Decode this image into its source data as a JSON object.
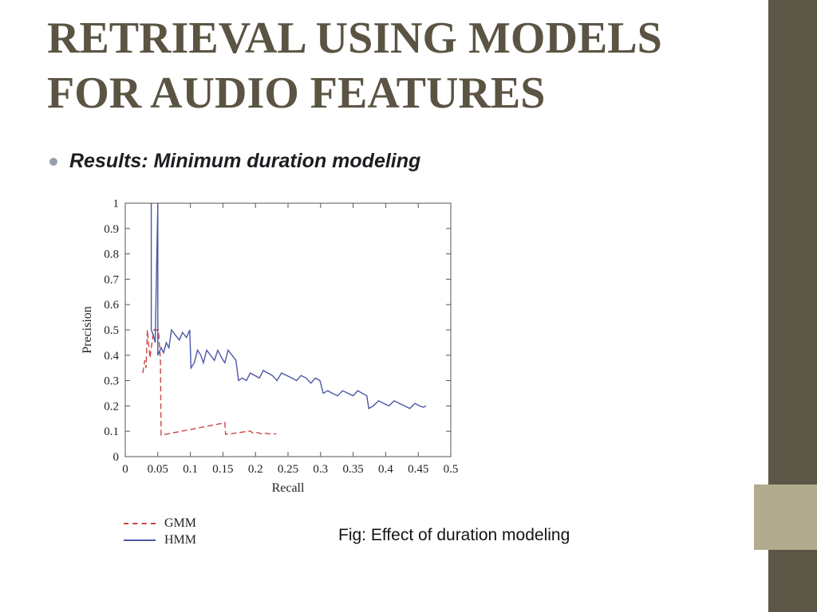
{
  "slide": {
    "title_line1": "RETRIEVAL USING MODELS",
    "title_line2": "FOR AUDIO FEATURES",
    "bullet_text": "Results: Minimum duration modeling",
    "caption": "Fig: Effect of duration modeling"
  },
  "colors": {
    "title_text": "#5b5443",
    "right_bar": "#5b5646",
    "accent_block": "#b2ab8d",
    "gmm_line": "#cc4444",
    "hmm_line": "#4c57a5",
    "axis": "#555555"
  },
  "chart_data": {
    "type": "line",
    "title": "",
    "xlabel": "Recall",
    "ylabel": "Precision",
    "xlim": [
      0,
      0.5
    ],
    "ylim": [
      0,
      1
    ],
    "grid": false,
    "xticks": [
      "0",
      "0.05",
      "0.1",
      "0.15",
      "0.2",
      "0.25",
      "0.3",
      "0.35",
      "0.4",
      "0.45",
      "0.5"
    ],
    "yticks": [
      "0",
      "0.1",
      "0.2",
      "0.3",
      "0.4",
      "0.5",
      "0.6",
      "0.7",
      "0.8",
      "0.9",
      "1"
    ],
    "legend_position": "below-left",
    "legend": [
      {
        "label": "GMM",
        "style": "dashed",
        "color": "#cc4444"
      },
      {
        "label": "HMM",
        "style": "solid",
        "color": "#4c57a5"
      }
    ],
    "series": [
      {
        "name": "GMM",
        "style": "dashed",
        "color": "#cc4444",
        "points": [
          [
            0.027,
            0.33
          ],
          [
            0.03,
            0.38
          ],
          [
            0.032,
            0.35
          ],
          [
            0.034,
            0.5
          ],
          [
            0.036,
            0.44
          ],
          [
            0.038,
            0.39
          ],
          [
            0.041,
            0.45
          ],
          [
            0.044,
            0.5
          ],
          [
            0.051,
            0.5
          ],
          [
            0.053,
            0.42
          ],
          [
            0.054,
            0.38
          ],
          [
            0.055,
            0.085
          ],
          [
            0.062,
            0.088
          ],
          [
            0.07,
            0.092
          ],
          [
            0.078,
            0.096
          ],
          [
            0.086,
            0.1
          ],
          [
            0.094,
            0.104
          ],
          [
            0.102,
            0.108
          ],
          [
            0.11,
            0.112
          ],
          [
            0.118,
            0.116
          ],
          [
            0.126,
            0.12
          ],
          [
            0.134,
            0.124
          ],
          [
            0.142,
            0.128
          ],
          [
            0.15,
            0.132
          ],
          [
            0.153,
            0.135
          ],
          [
            0.154,
            0.088
          ],
          [
            0.162,
            0.09
          ],
          [
            0.17,
            0.093
          ],
          [
            0.178,
            0.096
          ],
          [
            0.186,
            0.099
          ],
          [
            0.192,
            0.101
          ],
          [
            0.196,
            0.093
          ],
          [
            0.204,
            0.095
          ],
          [
            0.208,
            0.09
          ],
          [
            0.216,
            0.092
          ],
          [
            0.224,
            0.089
          ],
          [
            0.232,
            0.09
          ]
        ]
      },
      {
        "name": "HMM",
        "style": "solid",
        "color": "#4c57a5",
        "points": [
          [
            0.04,
            1.0
          ],
          [
            0.04,
            0.5
          ],
          [
            0.043,
            0.48
          ],
          [
            0.046,
            0.45
          ],
          [
            0.05,
            1.0
          ],
          [
            0.05,
            0.4
          ],
          [
            0.055,
            0.43
          ],
          [
            0.059,
            0.41
          ],
          [
            0.063,
            0.45
          ],
          [
            0.067,
            0.43
          ],
          [
            0.071,
            0.5
          ],
          [
            0.077,
            0.48
          ],
          [
            0.083,
            0.46
          ],
          [
            0.088,
            0.49
          ],
          [
            0.094,
            0.47
          ],
          [
            0.099,
            0.5
          ],
          [
            0.101,
            0.35
          ],
          [
            0.106,
            0.37
          ],
          [
            0.111,
            0.42
          ],
          [
            0.116,
            0.4
          ],
          [
            0.12,
            0.37
          ],
          [
            0.125,
            0.42
          ],
          [
            0.131,
            0.4
          ],
          [
            0.137,
            0.38
          ],
          [
            0.142,
            0.42
          ],
          [
            0.148,
            0.39
          ],
          [
            0.153,
            0.37
          ],
          [
            0.158,
            0.42
          ],
          [
            0.164,
            0.4
          ],
          [
            0.17,
            0.38
          ],
          [
            0.174,
            0.3
          ],
          [
            0.18,
            0.31
          ],
          [
            0.186,
            0.3
          ],
          [
            0.192,
            0.33
          ],
          [
            0.199,
            0.32
          ],
          [
            0.206,
            0.31
          ],
          [
            0.212,
            0.34
          ],
          [
            0.219,
            0.33
          ],
          [
            0.226,
            0.32
          ],
          [
            0.233,
            0.3
          ],
          [
            0.24,
            0.33
          ],
          [
            0.248,
            0.32
          ],
          [
            0.256,
            0.31
          ],
          [
            0.263,
            0.3
          ],
          [
            0.27,
            0.32
          ],
          [
            0.278,
            0.31
          ],
          [
            0.285,
            0.29
          ],
          [
            0.292,
            0.31
          ],
          [
            0.299,
            0.3
          ],
          [
            0.304,
            0.25
          ],
          [
            0.311,
            0.26
          ],
          [
            0.318,
            0.25
          ],
          [
            0.326,
            0.24
          ],
          [
            0.334,
            0.26
          ],
          [
            0.342,
            0.25
          ],
          [
            0.35,
            0.24
          ],
          [
            0.357,
            0.26
          ],
          [
            0.364,
            0.25
          ],
          [
            0.371,
            0.24
          ],
          [
            0.374,
            0.19
          ],
          [
            0.381,
            0.2
          ],
          [
            0.389,
            0.22
          ],
          [
            0.397,
            0.21
          ],
          [
            0.405,
            0.2
          ],
          [
            0.413,
            0.22
          ],
          [
            0.421,
            0.21
          ],
          [
            0.429,
            0.2
          ],
          [
            0.437,
            0.19
          ],
          [
            0.445,
            0.21
          ],
          [
            0.452,
            0.2
          ],
          [
            0.458,
            0.195
          ],
          [
            0.462,
            0.2
          ]
        ]
      }
    ]
  }
}
